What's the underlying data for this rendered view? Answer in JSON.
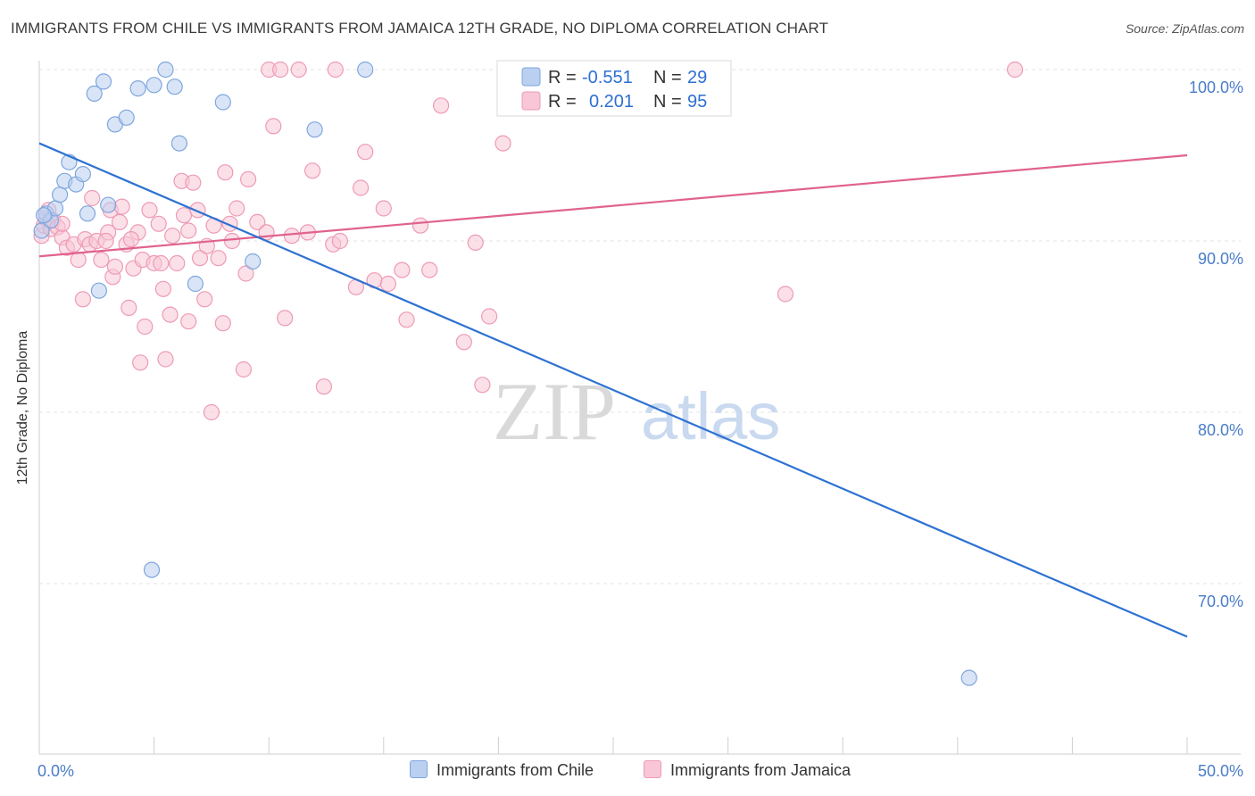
{
  "header": {
    "title": "IMMIGRANTS FROM CHILE VS IMMIGRANTS FROM JAMAICA 12TH GRADE, NO DIPLOMA CORRELATION CHART",
    "source": "Source: ZipAtlas.com"
  },
  "watermark": {
    "zip": "ZIP",
    "atlas": "atlas"
  },
  "legend_box": {
    "rows": [
      {
        "r_label": "R =",
        "r_value": "-0.551",
        "n_label": "N =",
        "n_value": "29"
      },
      {
        "r_label": "R =",
        "r_value": "0.201",
        "n_label": "N =",
        "n_value": "95"
      }
    ]
  },
  "colors": {
    "chile_fill": "#b9d0f0",
    "chile_stroke": "#7fa6de",
    "chile_line": "#2e72d2",
    "jamaica_fill": "#f8c6d6",
    "jamaica_stroke": "#ee9ab6",
    "jamaica_line": "#e0628f",
    "grid": "#e3e3e3",
    "axis_text": "#4a7cc9"
  },
  "chart_data": {
    "type": "scatter",
    "title": "IMMIGRANTS FROM CHILE VS IMMIGRANTS FROM JAMAICA 12TH GRADE, NO DIPLOMA CORRELATION CHART",
    "xlabel": "",
    "ylabel": "12th Grade, No Diploma",
    "xlim": [
      0,
      50
    ],
    "ylim": [
      60,
      101
    ],
    "x_tick_labels": [
      "0.0%",
      "50.0%"
    ],
    "y_ticks": [
      70,
      80,
      90,
      100
    ],
    "y_tick_labels": [
      "70.0%",
      "80.0%",
      "90.0%",
      "100.0%"
    ],
    "legend_position": "bottom-center",
    "series": [
      {
        "name": "Immigrants from Chile",
        "R": -0.551,
        "N": 29,
        "trend": {
          "x": [
            0,
            50
          ],
          "y": [
            95.7,
            66.9
          ]
        },
        "points": [
          [
            0.1,
            90.6
          ],
          [
            0.3,
            91.6
          ],
          [
            0.5,
            91.2
          ],
          [
            0.7,
            91.9
          ],
          [
            0.9,
            92.7
          ],
          [
            1.1,
            93.5
          ],
          [
            1.3,
            94.6
          ],
          [
            1.6,
            93.3
          ],
          [
            1.9,
            93.9
          ],
          [
            2.1,
            91.6
          ],
          [
            2.4,
            98.6
          ],
          [
            2.6,
            87.1
          ],
          [
            2.8,
            99.3
          ],
          [
            3.0,
            92.1
          ],
          [
            3.3,
            96.8
          ],
          [
            3.8,
            97.2
          ],
          [
            4.3,
            98.9
          ],
          [
            4.9,
            70.8
          ],
          [
            5.0,
            99.1
          ],
          [
            5.5,
            100.0
          ],
          [
            5.9,
            99.0
          ],
          [
            6.1,
            95.7
          ],
          [
            6.8,
            87.5
          ],
          [
            8.0,
            98.1
          ],
          [
            9.3,
            88.8
          ],
          [
            12.0,
            96.5
          ],
          [
            14.2,
            100.0
          ],
          [
            40.5,
            64.5
          ],
          [
            0.2,
            91.5
          ]
        ]
      },
      {
        "name": "Immigrants from Jamaica",
        "R": 0.201,
        "N": 95,
        "trend": {
          "x": [
            0,
            50
          ],
          "y": [
            89.1,
            95.0
          ]
        },
        "points": [
          [
            0.1,
            90.3
          ],
          [
            0.2,
            90.9
          ],
          [
            0.3,
            91.3
          ],
          [
            0.4,
            91.8
          ],
          [
            0.5,
            90.7
          ],
          [
            0.6,
            91.2
          ],
          [
            0.8,
            90.8
          ],
          [
            1.0,
            90.2
          ],
          [
            1.2,
            89.6
          ],
          [
            1.5,
            89.8
          ],
          [
            1.7,
            88.9
          ],
          [
            1.9,
            86.6
          ],
          [
            2.0,
            90.1
          ],
          [
            2.2,
            89.8
          ],
          [
            2.3,
            92.5
          ],
          [
            2.5,
            90.0
          ],
          [
            2.7,
            88.9
          ],
          [
            3.0,
            90.5
          ],
          [
            3.1,
            91.8
          ],
          [
            3.2,
            87.9
          ],
          [
            3.3,
            88.5
          ],
          [
            3.5,
            91.1
          ],
          [
            3.6,
            92.0
          ],
          [
            3.8,
            89.8
          ],
          [
            3.9,
            86.1
          ],
          [
            4.1,
            88.4
          ],
          [
            4.3,
            90.5
          ],
          [
            4.4,
            82.9
          ],
          [
            4.5,
            88.9
          ],
          [
            4.6,
            85.0
          ],
          [
            4.8,
            91.8
          ],
          [
            5.0,
            88.7
          ],
          [
            5.2,
            91.0
          ],
          [
            5.3,
            88.7
          ],
          [
            5.4,
            87.2
          ],
          [
            5.5,
            83.1
          ],
          [
            5.7,
            85.7
          ],
          [
            5.8,
            90.3
          ],
          [
            6.0,
            88.7
          ],
          [
            6.2,
            93.5
          ],
          [
            6.3,
            91.5
          ],
          [
            6.5,
            85.3
          ],
          [
            6.7,
            93.4
          ],
          [
            6.9,
            91.8
          ],
          [
            7.0,
            89.0
          ],
          [
            7.2,
            86.6
          ],
          [
            7.3,
            89.7
          ],
          [
            7.5,
            80.0
          ],
          [
            7.6,
            90.9
          ],
          [
            7.8,
            89.0
          ],
          [
            8.0,
            85.2
          ],
          [
            8.1,
            94.0
          ],
          [
            8.3,
            91.0
          ],
          [
            8.6,
            91.9
          ],
          [
            8.9,
            82.5
          ],
          [
            9.0,
            88.1
          ],
          [
            9.1,
            93.6
          ],
          [
            9.5,
            91.1
          ],
          [
            9.9,
            90.5
          ],
          [
            10.0,
            100.0
          ],
          [
            10.2,
            96.7
          ],
          [
            10.5,
            100.0
          ],
          [
            10.7,
            85.5
          ],
          [
            11.0,
            90.3
          ],
          [
            11.3,
            100.0
          ],
          [
            11.7,
            90.5
          ],
          [
            11.9,
            94.1
          ],
          [
            12.4,
            81.5
          ],
          [
            12.8,
            89.8
          ],
          [
            12.9,
            100.0
          ],
          [
            13.1,
            90.0
          ],
          [
            13.8,
            87.3
          ],
          [
            14.0,
            93.1
          ],
          [
            14.2,
            95.2
          ],
          [
            14.6,
            87.7
          ],
          [
            15.0,
            91.9
          ],
          [
            15.2,
            87.5
          ],
          [
            15.8,
            88.3
          ],
          [
            16.0,
            85.4
          ],
          [
            16.6,
            90.9
          ],
          [
            17.0,
            88.3
          ],
          [
            17.5,
            97.9
          ],
          [
            18.5,
            84.1
          ],
          [
            19.0,
            89.9
          ],
          [
            19.3,
            81.6
          ],
          [
            19.6,
            85.6
          ],
          [
            20.2,
            95.7
          ],
          [
            27.0,
            100.0
          ],
          [
            32.5,
            86.9
          ],
          [
            42.5,
            100.0
          ],
          [
            2.9,
            90.0
          ],
          [
            6.5,
            90.6
          ],
          [
            8.4,
            90.0
          ],
          [
            1.0,
            91.0
          ],
          [
            4.0,
            90.1
          ]
        ]
      }
    ]
  },
  "bottom_legend": {
    "items": [
      {
        "label": "Immigrants from Chile"
      },
      {
        "label": "Immigrants from Jamaica"
      }
    ]
  }
}
